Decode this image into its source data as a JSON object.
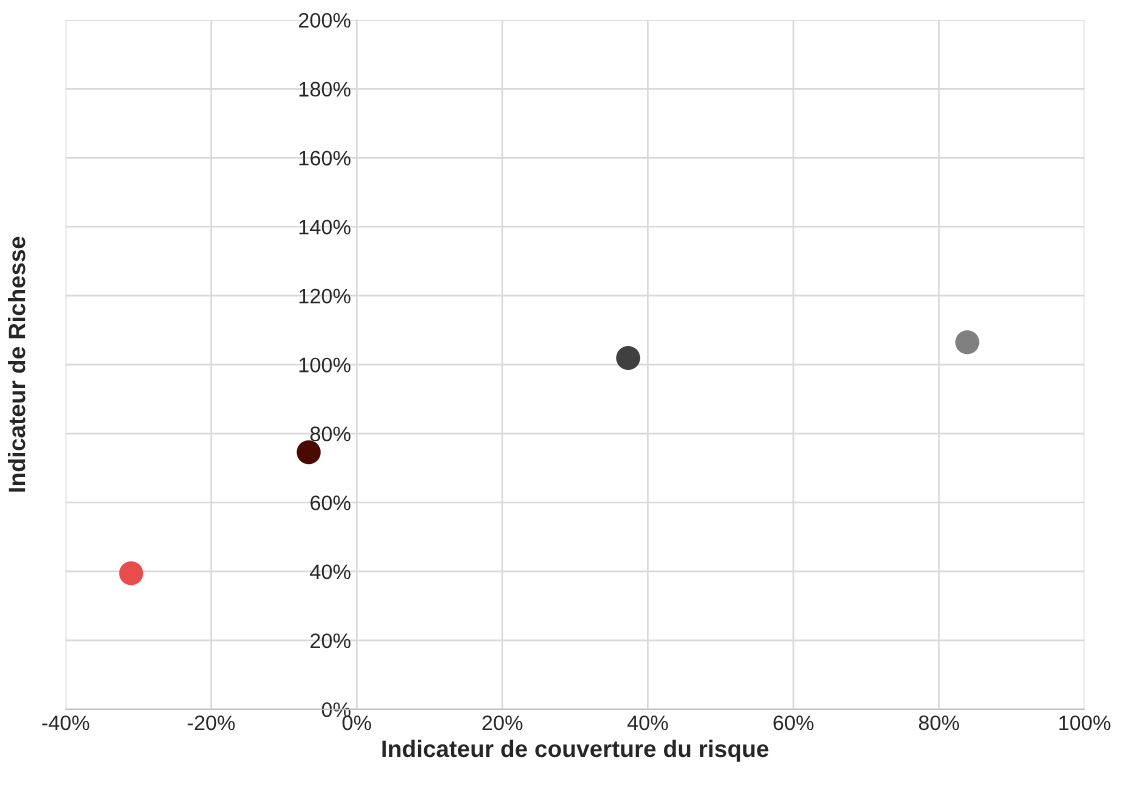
{
  "chart_data": {
    "type": "scatter",
    "xlabel": "Indicateur de couverture du risque",
    "ylabel": "Indicateur de Richesse",
    "x": [
      -31,
      -6.6,
      37.3,
      83.9
    ],
    "values": [
      39.5,
      74.6,
      101.9,
      106.5
    ],
    "colors": [
      "#e84c4c",
      "#4a0a00",
      "#404040",
      "#808080"
    ],
    "marker": "circle",
    "xlim": [
      -40,
      100
    ],
    "xticks": [
      {
        "value": -40,
        "label": "-40%"
      },
      {
        "value": -20,
        "label": "-20%"
      },
      {
        "value": 0,
        "label": "0%"
      },
      {
        "value": 20,
        "label": "20%"
      },
      {
        "value": 40,
        "label": "40%"
      },
      {
        "value": 60,
        "label": "60%"
      },
      {
        "value": 80,
        "label": "80%"
      },
      {
        "value": 100,
        "label": "100%"
      }
    ],
    "ylim": [
      0,
      200
    ],
    "yticks": [
      {
        "value": 0,
        "label": "0%"
      },
      {
        "value": 20,
        "label": "20%"
      },
      {
        "value": 40,
        "label": "40%"
      },
      {
        "value": 60,
        "label": "60%"
      },
      {
        "value": 80,
        "label": "80%"
      },
      {
        "value": 100,
        "label": "100%"
      },
      {
        "value": 120,
        "label": "120%"
      },
      {
        "value": 140,
        "label": "140%"
      },
      {
        "value": 160,
        "label": "160%"
      },
      {
        "value": 180,
        "label": "180%"
      },
      {
        "value": 200,
        "label": "200%"
      }
    ],
    "grid": true
  }
}
